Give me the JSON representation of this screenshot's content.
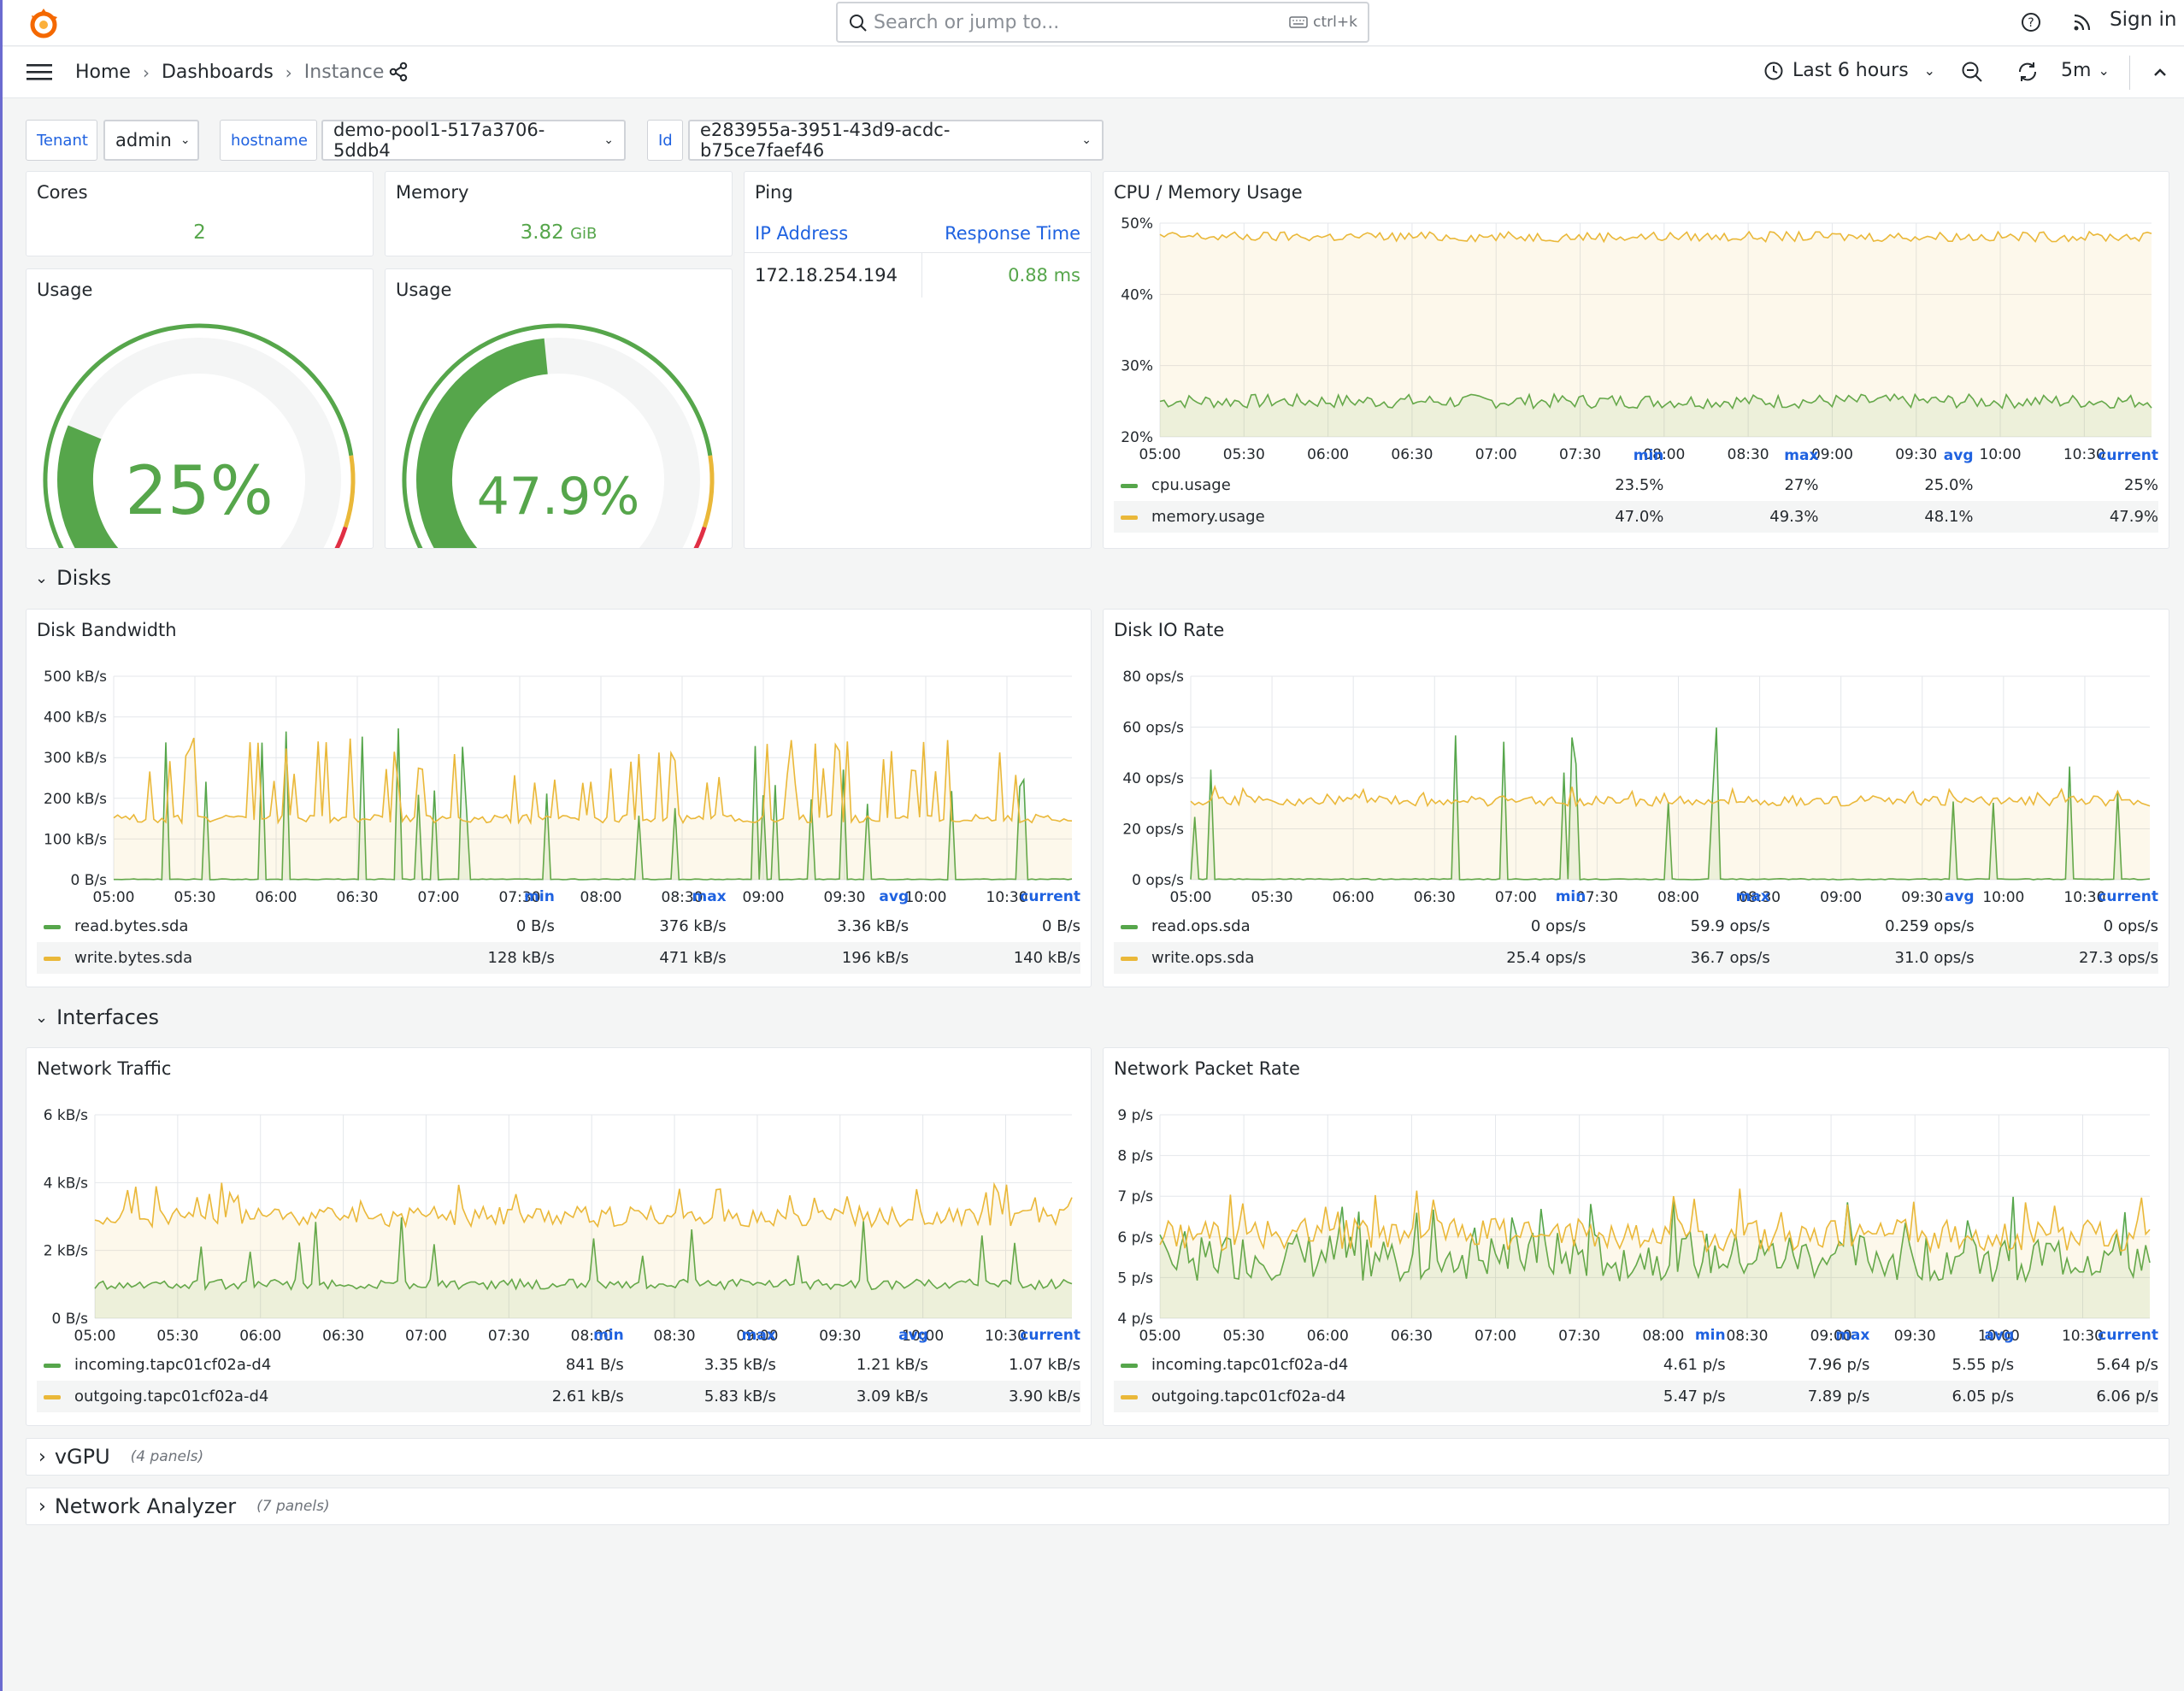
{
  "topbar": {
    "search_placeholder": "Search or jump to...",
    "search_shortcut": "ctrl+k",
    "signin": "Sign in"
  },
  "nav": {
    "breadcrumbs": [
      "Home",
      "Dashboards",
      "Instance"
    ],
    "time_range": "Last 6 hours",
    "refresh_interval": "5m"
  },
  "variables": [
    {
      "label": "Tenant",
      "value": "admin"
    },
    {
      "label": "hostname",
      "value": "demo-pool1-517a3706-5ddb4"
    },
    {
      "label": "Id",
      "value": "e283955a-3951-43d9-acdc-b75ce7faef46"
    }
  ],
  "stats": {
    "cores": {
      "title": "Cores",
      "value": "2"
    },
    "memory": {
      "title": "Memory",
      "value": "3.82",
      "unit": "GiB"
    }
  },
  "gauges": [
    {
      "title": "Usage",
      "value": 25,
      "label": "25%"
    },
    {
      "title": "Usage",
      "value": 47.9,
      "label": "47.9%"
    }
  ],
  "ping": {
    "title": "Ping",
    "headers": [
      "IP Address",
      "Response Time"
    ],
    "rows": [
      [
        "172.18.254.194",
        "0.88 ms"
      ]
    ]
  },
  "colors": {
    "green": "#56a64b",
    "yellow": "#eab839",
    "red": "#e02f44",
    "blue": "#1f62e0"
  },
  "rows": {
    "disks": "Disks",
    "interfaces": "Interfaces",
    "vgpu": {
      "title": "vGPU",
      "panels": "(4 panels)"
    },
    "network_analyzer": {
      "title": "Network Analyzer",
      "panels": "(7 panels)"
    }
  },
  "legend_headers": [
    "min",
    "max",
    "avg",
    "current"
  ],
  "time_ticks": [
    "05:00",
    "05:30",
    "06:00",
    "06:30",
    "07:00",
    "07:30",
    "08:00",
    "08:30",
    "09:00",
    "09:30",
    "10:00",
    "10:30"
  ],
  "chart_data": [
    {
      "id": "cpu-mem",
      "type": "line",
      "title": "CPU / Memory Usage",
      "yticks": [
        "20%",
        "30%",
        "40%",
        "50%"
      ],
      "ylim": [
        20,
        50
      ],
      "series": [
        {
          "name": "cpu.usage",
          "color": "green",
          "base": 25,
          "noise": 1,
          "spikes": 0,
          "stats": [
            "23.5%",
            "27%",
            "25.0%",
            "25%"
          ]
        },
        {
          "name": "memory.usage",
          "color": "yellow",
          "base": 48.1,
          "noise": 0.7,
          "spikes": 0,
          "stats": [
            "47.0%",
            "49.3%",
            "48.1%",
            "47.9%"
          ]
        }
      ]
    },
    {
      "id": "disk-bw",
      "type": "line",
      "title": "Disk Bandwidth",
      "yticks": [
        "0 B/s",
        "100 kB/s",
        "200 kB/s",
        "300 kB/s",
        "400 kB/s",
        "500 kB/s"
      ],
      "ylim": [
        0,
        500
      ],
      "series": [
        {
          "name": "read.bytes.sda",
          "color": "green",
          "base": 1,
          "noise": 1,
          "spikes": 376,
          "stats": [
            "0 B/s",
            "376 kB/s",
            "3.36 kB/s",
            "0 B/s"
          ]
        },
        {
          "name": "write.bytes.sda",
          "color": "yellow",
          "base": 150,
          "noise": 10,
          "spikes": 350,
          "stats": [
            "128 kB/s",
            "471 kB/s",
            "196 kB/s",
            "140 kB/s"
          ]
        }
      ]
    },
    {
      "id": "disk-io",
      "type": "line",
      "title": "Disk IO Rate",
      "yticks": [
        "0 ops/s",
        "20 ops/s",
        "40 ops/s",
        "60 ops/s",
        "80 ops/s"
      ],
      "ylim": [
        0,
        80
      ],
      "series": [
        {
          "name": "read.ops.sda",
          "color": "green",
          "base": 0.2,
          "noise": 0.2,
          "spikes": 60,
          "stats": [
            "0 ops/s",
            "59.9 ops/s",
            "0.259 ops/s",
            "0 ops/s"
          ]
        },
        {
          "name": "write.ops.sda",
          "color": "yellow",
          "base": 31,
          "noise": 2,
          "spikes": 36.7,
          "stats": [
            "25.4 ops/s",
            "36.7 ops/s",
            "31.0 ops/s",
            "27.3 ops/s"
          ]
        }
      ]
    },
    {
      "id": "net-traffic",
      "type": "line",
      "title": "Network Traffic",
      "yticks": [
        "0 B/s",
        "2 kB/s",
        "4 kB/s",
        "6 kB/s"
      ],
      "ylim": [
        0,
        6
      ],
      "series": [
        {
          "name": "incoming.tapc01cf02a-d4",
          "color": "green",
          "base": 1.0,
          "noise": 0.15,
          "spikes": 3.0,
          "stats": [
            "841 B/s",
            "3.35 kB/s",
            "1.21 kB/s",
            "1.07 kB/s"
          ]
        },
        {
          "name": "outgoing.tapc01cf02a-d4",
          "color": "yellow",
          "base": 3.0,
          "noise": 0.3,
          "spikes": 4.0,
          "stats": [
            "2.61 kB/s",
            "5.83 kB/s",
            "3.09 kB/s",
            "3.90 kB/s"
          ]
        }
      ]
    },
    {
      "id": "net-packets",
      "type": "line",
      "title": "Network Packet Rate",
      "yticks": [
        "4 p/s",
        "5 p/s",
        "6 p/s",
        "7 p/s",
        "8 p/s",
        "9 p/s"
      ],
      "ylim": [
        4,
        9
      ],
      "series": [
        {
          "name": "incoming.tapc01cf02a-d4",
          "color": "green",
          "base": 5.5,
          "noise": 0.6,
          "spikes": 7.0,
          "stats": [
            "4.61 p/s",
            "7.96 p/s",
            "5.55 p/s",
            "5.64 p/s"
          ]
        },
        {
          "name": "outgoing.tapc01cf02a-d4",
          "color": "yellow",
          "base": 6.05,
          "noise": 0.4,
          "spikes": 7.2,
          "stats": [
            "5.47 p/s",
            "7.89 p/s",
            "6.05 p/s",
            "6.06 p/s"
          ]
        }
      ]
    }
  ]
}
